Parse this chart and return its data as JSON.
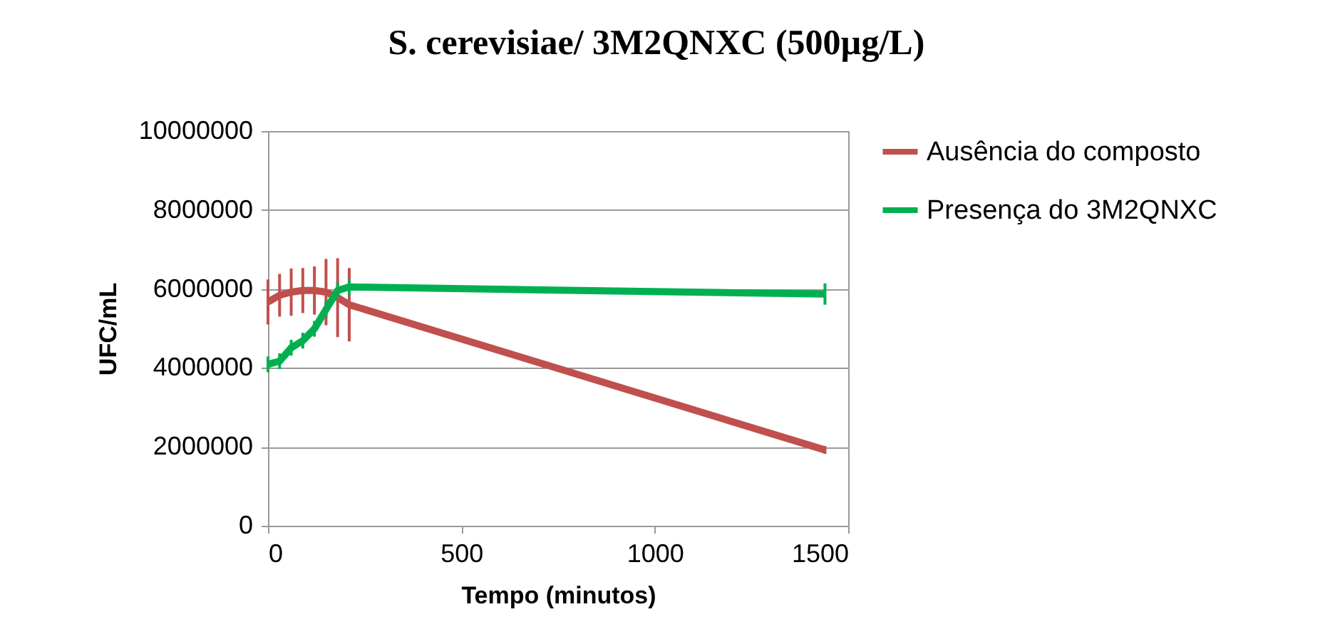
{
  "chart_data": {
    "type": "line",
    "title": "S. cerevisiae/ 3M2QNXC (500µg/L)",
    "xlabel": "Tempo (minutos)",
    "ylabel": "UFC/mL",
    "x": [
      0,
      30,
      60,
      90,
      120,
      150,
      180,
      210,
      1440
    ],
    "series": [
      {
        "name": "Ausência do composto",
        "color": "#c0504d",
        "values": [
          5670000,
          5840000,
          5920000,
          5960000,
          5960000,
          5920000,
          5780000,
          5600000,
          1920000
        ],
        "errors": [
          570000,
          540000,
          600000,
          570000,
          610000,
          840000,
          1000000,
          930000,
          100000
        ]
      },
      {
        "name": "Presença do 3M2QNXC",
        "color": "#00b050",
        "values": [
          4090000,
          4170000,
          4510000,
          4690000,
          4990000,
          5480000,
          5960000,
          6050000,
          5870000
        ],
        "errors": [
          200000,
          200000,
          200000,
          200000,
          200000,
          200000,
          200000,
          200000,
          270000
        ]
      }
    ],
    "xlim": [
      0,
      1500
    ],
    "xticks": [
      0,
      500,
      1000,
      1500
    ],
    "ylim": [
      0,
      10000000
    ],
    "yticks": [
      0,
      2000000,
      4000000,
      6000000,
      8000000,
      10000000
    ],
    "grid": "y",
    "legend": "right",
    "marker": "none",
    "line_style": "solid"
  }
}
